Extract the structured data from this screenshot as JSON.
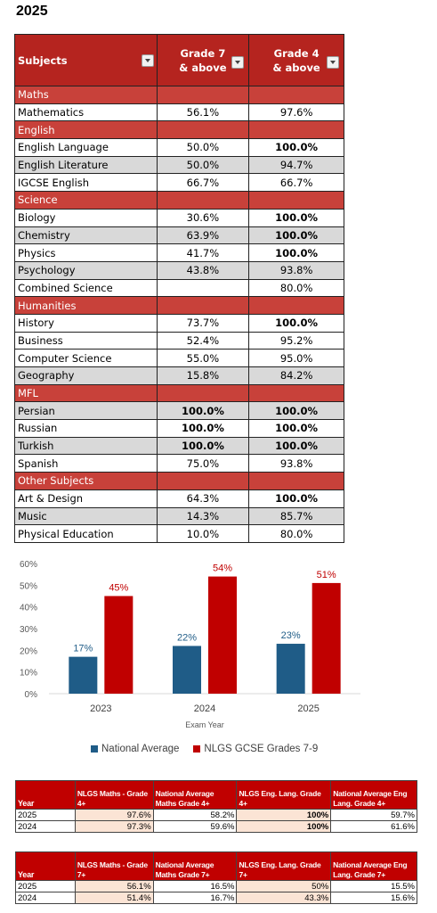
{
  "year_heading": "2025",
  "results_table": {
    "headers": {
      "subjects": "Subjects",
      "grade7_line1": "Grade 7",
      "grade7_line2": "& above",
      "grade4_line1": "Grade 4",
      "grade4_line2": "& above"
    },
    "sections": [
      {
        "name": "Maths",
        "rows": [
          {
            "subject": "Mathematics",
            "g7": "56.1%",
            "g4": "97.6%",
            "g7_bold": false,
            "g4_bold": false,
            "alt": false
          }
        ]
      },
      {
        "name": "English",
        "rows": [
          {
            "subject": "English Language",
            "g7": "50.0%",
            "g4": "100.0%",
            "g7_bold": false,
            "g4_bold": true,
            "alt": false
          },
          {
            "subject": "English Literature",
            "g7": "50.0%",
            "g4": "94.7%",
            "g7_bold": false,
            "g4_bold": false,
            "alt": true
          },
          {
            "subject": "IGCSE English",
            "g7": "66.7%",
            "g4": "66.7%",
            "g7_bold": false,
            "g4_bold": false,
            "alt": false
          }
        ]
      },
      {
        "name": "Science",
        "rows": [
          {
            "subject": "Biology",
            "g7": "30.6%",
            "g4": "100.0%",
            "g7_bold": false,
            "g4_bold": true,
            "alt": false
          },
          {
            "subject": "Chemistry",
            "g7": "63.9%",
            "g4": "100.0%",
            "g7_bold": false,
            "g4_bold": true,
            "alt": true
          },
          {
            "subject": "Physics",
            "g7": "41.7%",
            "g4": "100.0%",
            "g7_bold": false,
            "g4_bold": true,
            "alt": false
          },
          {
            "subject": "Psychology",
            "g7": "43.8%",
            "g4": "93.8%",
            "g7_bold": false,
            "g4_bold": false,
            "alt": true
          },
          {
            "subject": "Combined Science",
            "g7": "",
            "g4": "80.0%",
            "g7_bold": false,
            "g4_bold": false,
            "alt": false
          }
        ]
      },
      {
        "name": "Humanities",
        "rows": [
          {
            "subject": "History",
            "g7": "73.7%",
            "g4": "100.0%",
            "g7_bold": false,
            "g4_bold": true,
            "alt": false
          },
          {
            "subject": "Business",
            "g7": "52.4%",
            "g4": "95.2%",
            "g7_bold": false,
            "g4_bold": false,
            "alt": false
          },
          {
            "subject": "Computer Science",
            "g7": "55.0%",
            "g4": "95.0%",
            "g7_bold": false,
            "g4_bold": false,
            "alt": false
          },
          {
            "subject": "Geography",
            "g7": "15.8%",
            "g4": "84.2%",
            "g7_bold": false,
            "g4_bold": false,
            "alt": true
          }
        ]
      },
      {
        "name": "MFL",
        "rows": [
          {
            "subject": "Persian",
            "g7": "100.0%",
            "g4": "100.0%",
            "g7_bold": true,
            "g4_bold": true,
            "alt": true
          },
          {
            "subject": "Russian",
            "g7": "100.0%",
            "g4": "100.0%",
            "g7_bold": true,
            "g4_bold": true,
            "alt": false
          },
          {
            "subject": "Turkish",
            "g7": "100.0%",
            "g4": "100.0%",
            "g7_bold": true,
            "g4_bold": true,
            "alt": true
          },
          {
            "subject": "Spanish",
            "g7": "75.0%",
            "g4": "93.8%",
            "g7_bold": false,
            "g4_bold": false,
            "alt": false
          }
        ]
      },
      {
        "name": "Other Subjects",
        "rows": [
          {
            "subject": "Art & Design",
            "g7": "64.3%",
            "g4": "100.0%",
            "g7_bold": false,
            "g4_bold": true,
            "alt": false
          },
          {
            "subject": "Music",
            "g7": "14.3%",
            "g4": "85.7%",
            "g7_bold": false,
            "g4_bold": false,
            "alt": true
          },
          {
            "subject": "Physical Education",
            "g7": "10.0%",
            "g4": "80.0%",
            "g7_bold": false,
            "g4_bold": false,
            "alt": false
          }
        ]
      }
    ]
  },
  "chart_data": {
    "type": "bar",
    "categories": [
      "2023",
      "2024",
      "2025"
    ],
    "series": [
      {
        "name": "National Average",
        "values": [
          17,
          22,
          23
        ],
        "labels": [
          "17%",
          "22%",
          "23%"
        ],
        "color": "#1f5c87"
      },
      {
        "name": "NLGS GCSE  Grades 7-9",
        "values": [
          45,
          54,
          51
        ],
        "labels": [
          "45%",
          "54%",
          "51%"
        ],
        "color": "#c00000"
      }
    ],
    "ylim": [
      0,
      60
    ],
    "yticks": [
      "0%",
      "10%",
      "20%",
      "30%",
      "40%",
      "50%",
      "60%"
    ],
    "xlabel": "Exam Year",
    "ylabel": "",
    "legend": "bottom",
    "grid": false
  },
  "table_grade4": {
    "headers": [
      "Year",
      "NLGS Maths - Grade 4+",
      "National Average Maths Grade 4+",
      "NLGS Eng. Lang. Grade 4+",
      "National Average Eng Lang. Grade 4+"
    ],
    "rows": [
      [
        "2025",
        "97.6%",
        "58.2%",
        "100%",
        "59.7%"
      ],
      [
        "2024",
        "97.3%",
        "59.6%",
        "100%",
        "61.6%"
      ]
    ]
  },
  "table_grade7": {
    "headers": [
      "Year",
      "NLGS Maths - Grade 7+",
      "National Average Maths Grade 7+",
      "NLGS Eng. Lang. Grade 7+",
      "National Average Eng Lang. Grade 7+"
    ],
    "rows": [
      [
        "2025",
        "56.1%",
        "16.5%",
        "50%",
        "15.5%"
      ],
      [
        "2024",
        "51.4%",
        "16.7%",
        "43.3%",
        "15.6%"
      ]
    ]
  }
}
